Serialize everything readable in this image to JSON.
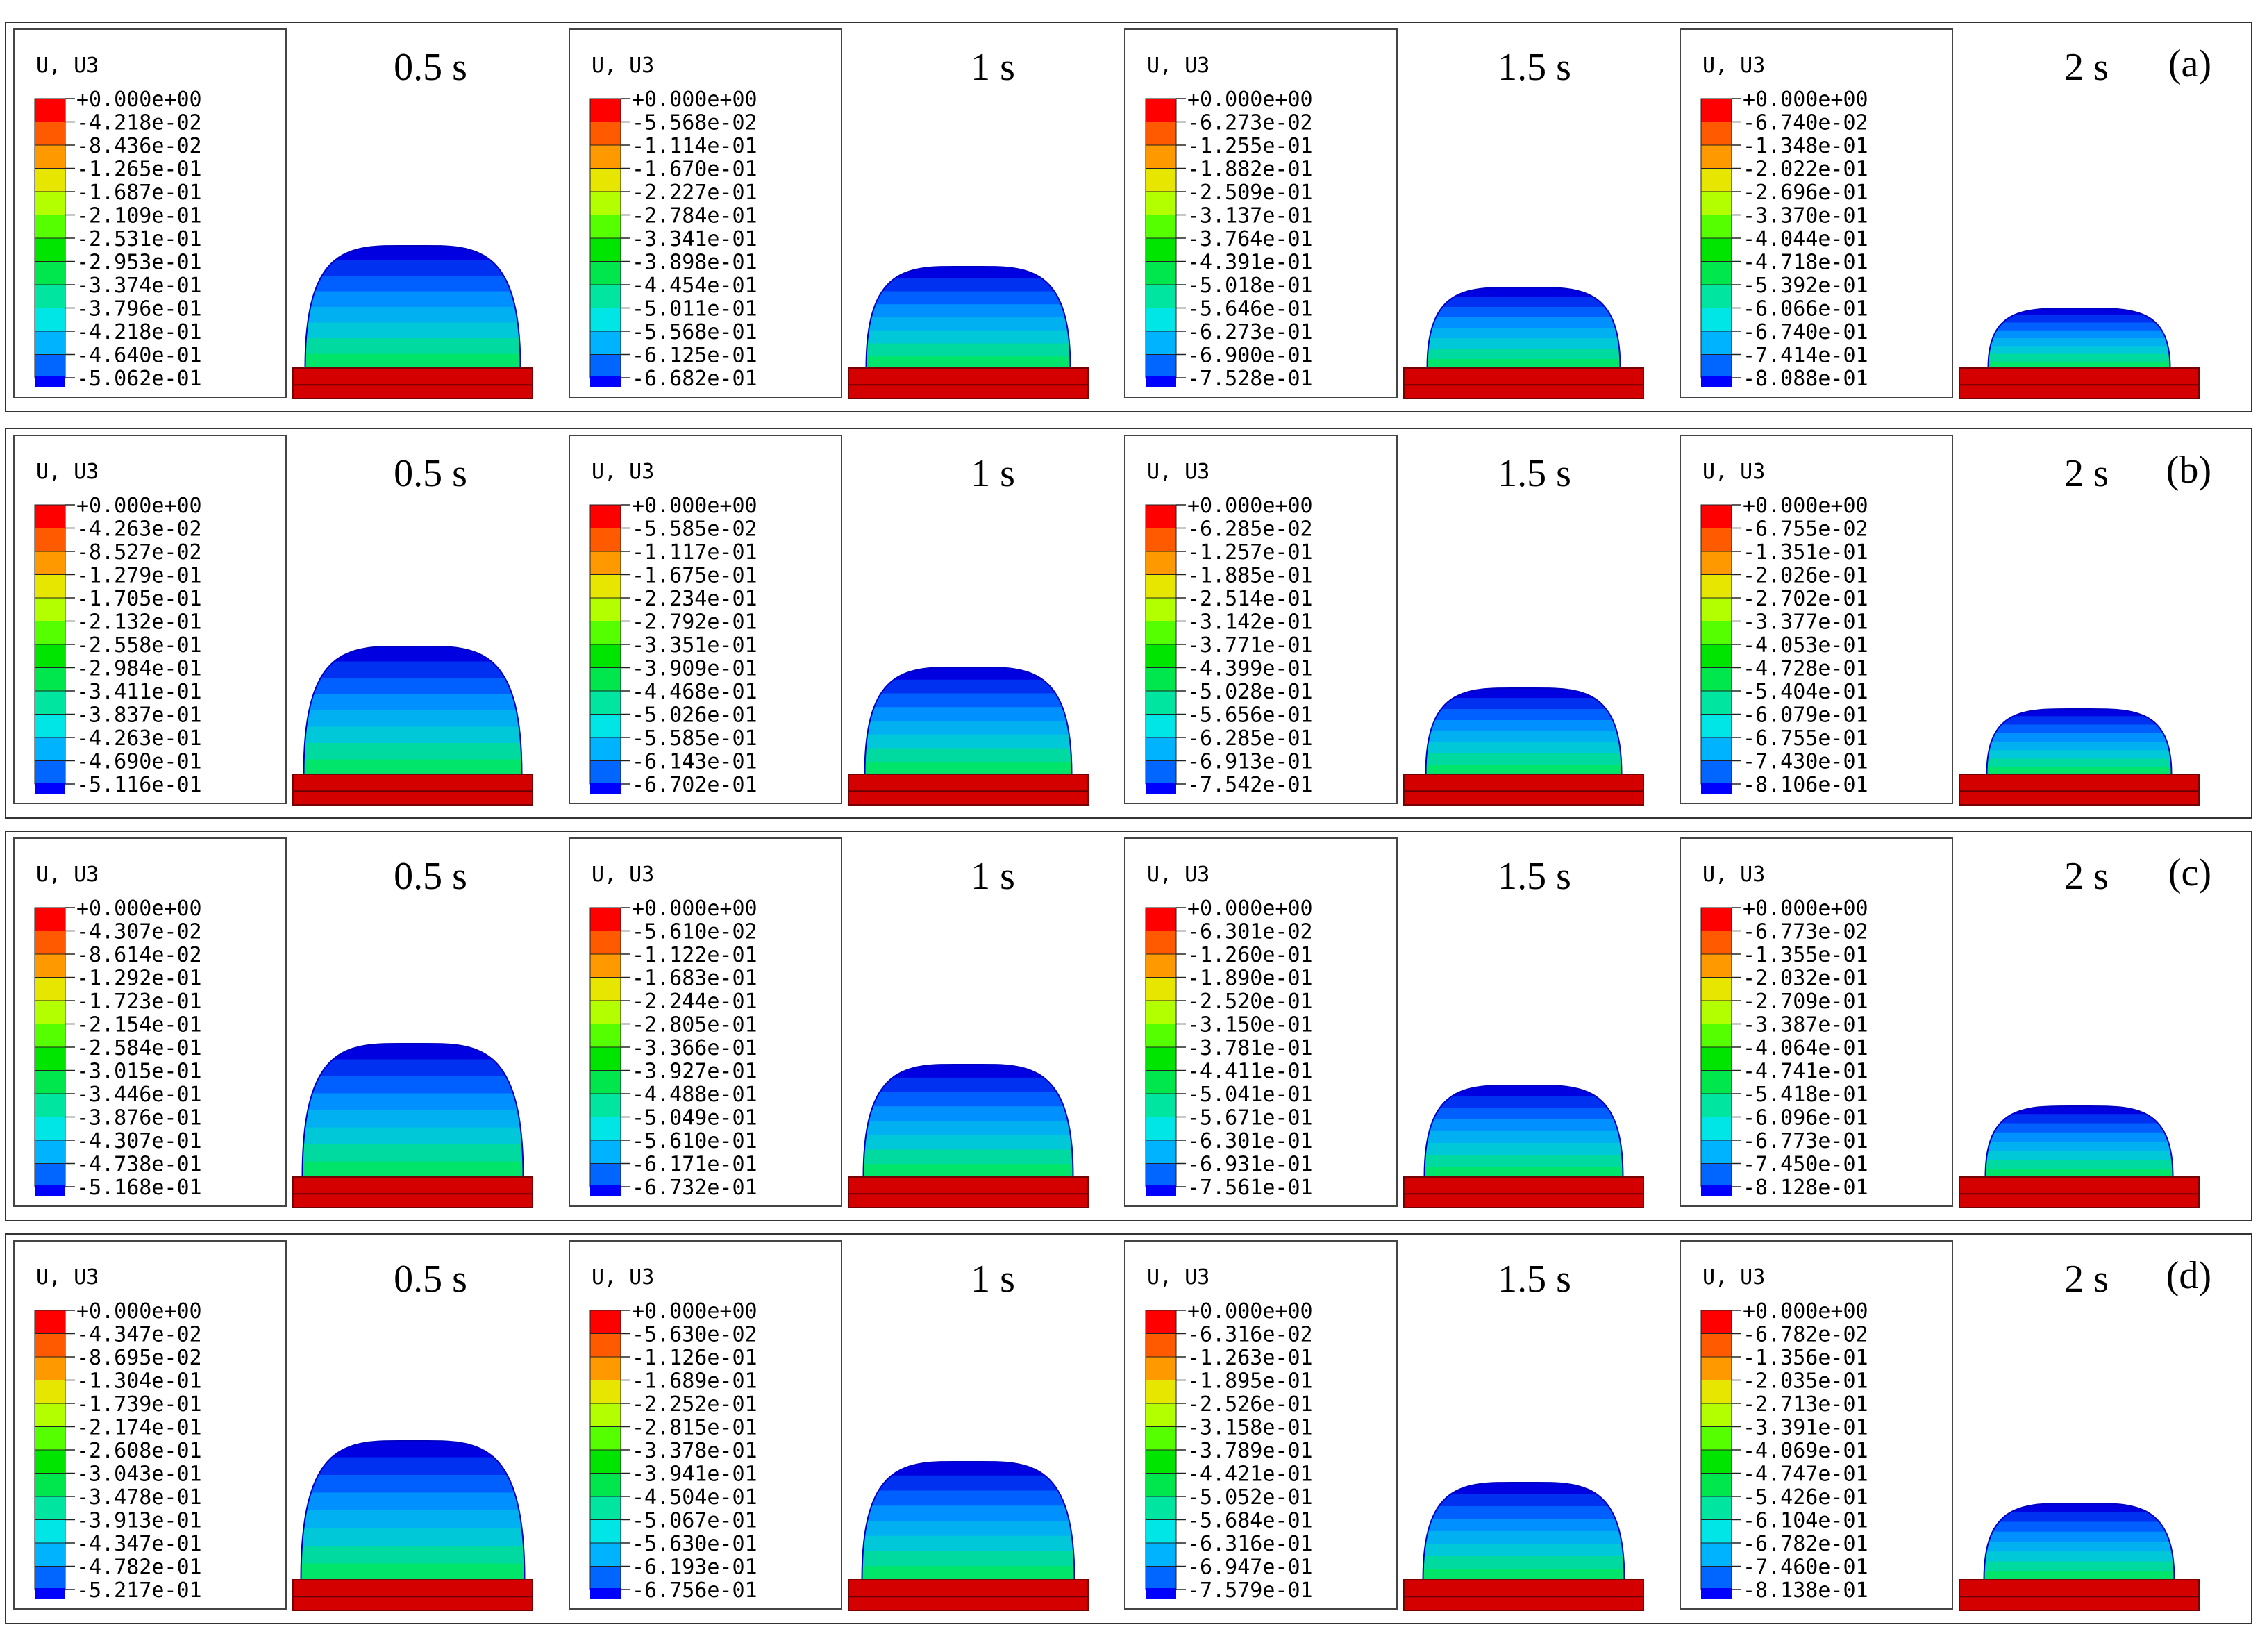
{
  "figure": {
    "legend_title": "U, U3",
    "colors": [
      "#ff0000",
      "#ff5a00",
      "#ff9900",
      "#e6e600",
      "#b3ff00",
      "#55ff00",
      "#00e500",
      "#00e64d",
      "#00e6a0",
      "#00e6e6",
      "#00b3ff",
      "#0066ff",
      "#0000ff"
    ],
    "rows": [
      {
        "label": "(a)",
        "panels": [
          {
            "time": "0.5 s",
            "values": [
              "+0.000e+00",
              "-4.218e-02",
              "-8.436e-02",
              "-1.265e-01",
              "-1.687e-01",
              "-2.109e-01",
              "-2.531e-01",
              "-2.953e-01",
              "-3.374e-01",
              "-3.796e-01",
              "-4.218e-01",
              "-4.640e-01",
              "-5.062e-01"
            ]
          },
          {
            "time": "1 s",
            "values": [
              "+0.000e+00",
              "-5.568e-02",
              "-1.114e-01",
              "-1.670e-01",
              "-2.227e-01",
              "-2.784e-01",
              "-3.341e-01",
              "-3.898e-01",
              "-4.454e-01",
              "-5.011e-01",
              "-5.568e-01",
              "-6.125e-01",
              "-6.682e-01"
            ]
          },
          {
            "time": "1.5 s",
            "values": [
              "+0.000e+00",
              "-6.273e-02",
              "-1.255e-01",
              "-1.882e-01",
              "-2.509e-01",
              "-3.137e-01",
              "-3.764e-01",
              "-4.391e-01",
              "-5.018e-01",
              "-5.646e-01",
              "-6.273e-01",
              "-6.900e-01",
              "-7.528e-01"
            ]
          },
          {
            "time": "2 s",
            "values": [
              "+0.000e+00",
              "-6.740e-02",
              "-1.348e-01",
              "-2.022e-01",
              "-2.696e-01",
              "-3.370e-01",
              "-4.044e-01",
              "-4.718e-01",
              "-5.392e-01",
              "-6.066e-01",
              "-6.740e-01",
              "-7.414e-01",
              "-8.088e-01"
            ]
          }
        ]
      },
      {
        "label": "(b)",
        "panels": [
          {
            "time": "0.5 s",
            "values": [
              "+0.000e+00",
              "-4.263e-02",
              "-8.527e-02",
              "-1.279e-01",
              "-1.705e-01",
              "-2.132e-01",
              "-2.558e-01",
              "-2.984e-01",
              "-3.411e-01",
              "-3.837e-01",
              "-4.263e-01",
              "-4.690e-01",
              "-5.116e-01"
            ]
          },
          {
            "time": "1 s",
            "values": [
              "+0.000e+00",
              "-5.585e-02",
              "-1.117e-01",
              "-1.675e-01",
              "-2.234e-01",
              "-2.792e-01",
              "-3.351e-01",
              "-3.909e-01",
              "-4.468e-01",
              "-5.026e-01",
              "-5.585e-01",
              "-6.143e-01",
              "-6.702e-01"
            ]
          },
          {
            "time": "1.5 s",
            "values": [
              "+0.000e+00",
              "-6.285e-02",
              "-1.257e-01",
              "-1.885e-01",
              "-2.514e-01",
              "-3.142e-01",
              "-3.771e-01",
              "-4.399e-01",
              "-5.028e-01",
              "-5.656e-01",
              "-6.285e-01",
              "-6.913e-01",
              "-7.542e-01"
            ]
          },
          {
            "time": "2 s",
            "values": [
              "+0.000e+00",
              "-6.755e-02",
              "-1.351e-01",
              "-2.026e-01",
              "-2.702e-01",
              "-3.377e-01",
              "-4.053e-01",
              "-4.728e-01",
              "-5.404e-01",
              "-6.079e-01",
              "-6.755e-01",
              "-7.430e-01",
              "-8.106e-01"
            ]
          }
        ]
      },
      {
        "label": "(c)",
        "panels": [
          {
            "time": "0.5 s",
            "values": [
              "+0.000e+00",
              "-4.307e-02",
              "-8.614e-02",
              "-1.292e-01",
              "-1.723e-01",
              "-2.154e-01",
              "-2.584e-01",
              "-3.015e-01",
              "-3.446e-01",
              "-3.876e-01",
              "-4.307e-01",
              "-4.738e-01",
              "-5.168e-01"
            ]
          },
          {
            "time": "1 s",
            "values": [
              "+0.000e+00",
              "-5.610e-02",
              "-1.122e-01",
              "-1.683e-01",
              "-2.244e-01",
              "-2.805e-01",
              "-3.366e-01",
              "-3.927e-01",
              "-4.488e-01",
              "-5.049e-01",
              "-5.610e-01",
              "-6.171e-01",
              "-6.732e-01"
            ]
          },
          {
            "time": "1.5 s",
            "values": [
              "+0.000e+00",
              "-6.301e-02",
              "-1.260e-01",
              "-1.890e-01",
              "-2.520e-01",
              "-3.150e-01",
              "-3.781e-01",
              "-4.411e-01",
              "-5.041e-01",
              "-5.671e-01",
              "-6.301e-01",
              "-6.931e-01",
              "-7.561e-01"
            ]
          },
          {
            "time": "2 s",
            "values": [
              "+0.000e+00",
              "-6.773e-02",
              "-1.355e-01",
              "-2.032e-01",
              "-2.709e-01",
              "-3.387e-01",
              "-4.064e-01",
              "-4.741e-01",
              "-5.418e-01",
              "-6.096e-01",
              "-6.773e-01",
              "-7.450e-01",
              "-8.128e-01"
            ]
          }
        ]
      },
      {
        "label": "(d)",
        "panels": [
          {
            "time": "0.5 s",
            "values": [
              "+0.000e+00",
              "-4.347e-02",
              "-8.695e-02",
              "-1.304e-01",
              "-1.739e-01",
              "-2.174e-01",
              "-2.608e-01",
              "-3.043e-01",
              "-3.478e-01",
              "-3.913e-01",
              "-4.347e-01",
              "-4.782e-01",
              "-5.217e-01"
            ]
          },
          {
            "time": "1 s",
            "values": [
              "+0.000e+00",
              "-5.630e-02",
              "-1.126e-01",
              "-1.689e-01",
              "-2.252e-01",
              "-2.815e-01",
              "-3.378e-01",
              "-3.941e-01",
              "-4.504e-01",
              "-5.067e-01",
              "-5.630e-01",
              "-6.193e-01",
              "-6.756e-01"
            ]
          },
          {
            "time": "1.5 s",
            "values": [
              "+0.000e+00",
              "-6.316e-02",
              "-1.263e-01",
              "-1.895e-01",
              "-2.526e-01",
              "-3.158e-01",
              "-3.789e-01",
              "-4.421e-01",
              "-5.052e-01",
              "-5.684e-01",
              "-6.316e-01",
              "-6.947e-01",
              "-7.579e-01"
            ]
          },
          {
            "time": "2 s",
            "values": [
              "+0.000e+00",
              "-6.782e-02",
              "-1.356e-01",
              "-2.035e-01",
              "-2.713e-01",
              "-3.391e-01",
              "-4.069e-01",
              "-4.747e-01",
              "-5.426e-01",
              "-6.104e-01",
              "-6.782e-01",
              "-7.460e-01",
              "-8.138e-01"
            ]
          }
        ]
      }
    ]
  }
}
